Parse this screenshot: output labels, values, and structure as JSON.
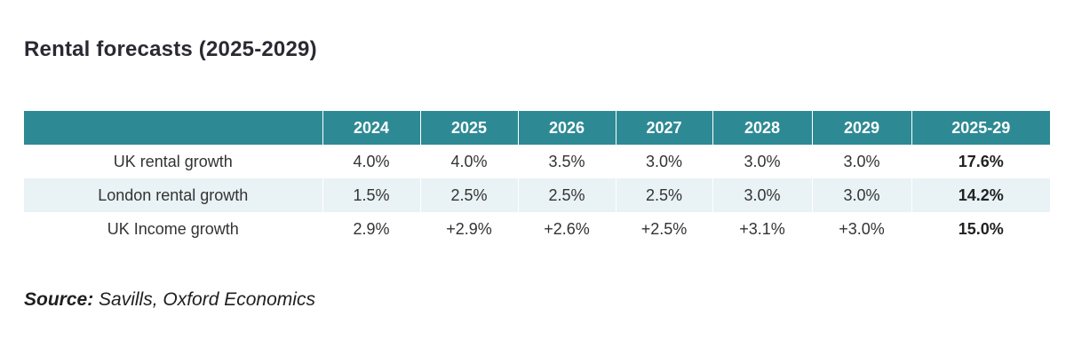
{
  "title": "Rental forecasts (2025-2029)",
  "source": {
    "label": "Source:",
    "text": "Savills, Oxford Economics"
  },
  "colors": {
    "header_bg": "#2d8a94",
    "header_text": "#ffffff",
    "alt_row_bg": "#e9f2f5"
  },
  "chart_data": {
    "type": "table",
    "title": "Rental forecasts (2025-2029)",
    "columns": [
      "",
      "2024",
      "2025",
      "2026",
      "2027",
      "2028",
      "2029",
      "2025-29"
    ],
    "rows": [
      {
        "label": "UK rental growth",
        "values": [
          "4.0%",
          "4.0%",
          "3.5%",
          "3.0%",
          "3.0%",
          "3.0%"
        ],
        "total": "17.6%"
      },
      {
        "label": "London rental growth",
        "values": [
          "1.5%",
          "2.5%",
          "2.5%",
          "2.5%",
          "3.0%",
          "3.0%"
        ],
        "total": "14.2%"
      },
      {
        "label": "UK Income growth",
        "values": [
          "2.9%",
          "+2.9%",
          "+2.6%",
          "+2.5%",
          "+3.1%",
          "+3.0%"
        ],
        "total": "15.0%"
      }
    ]
  }
}
